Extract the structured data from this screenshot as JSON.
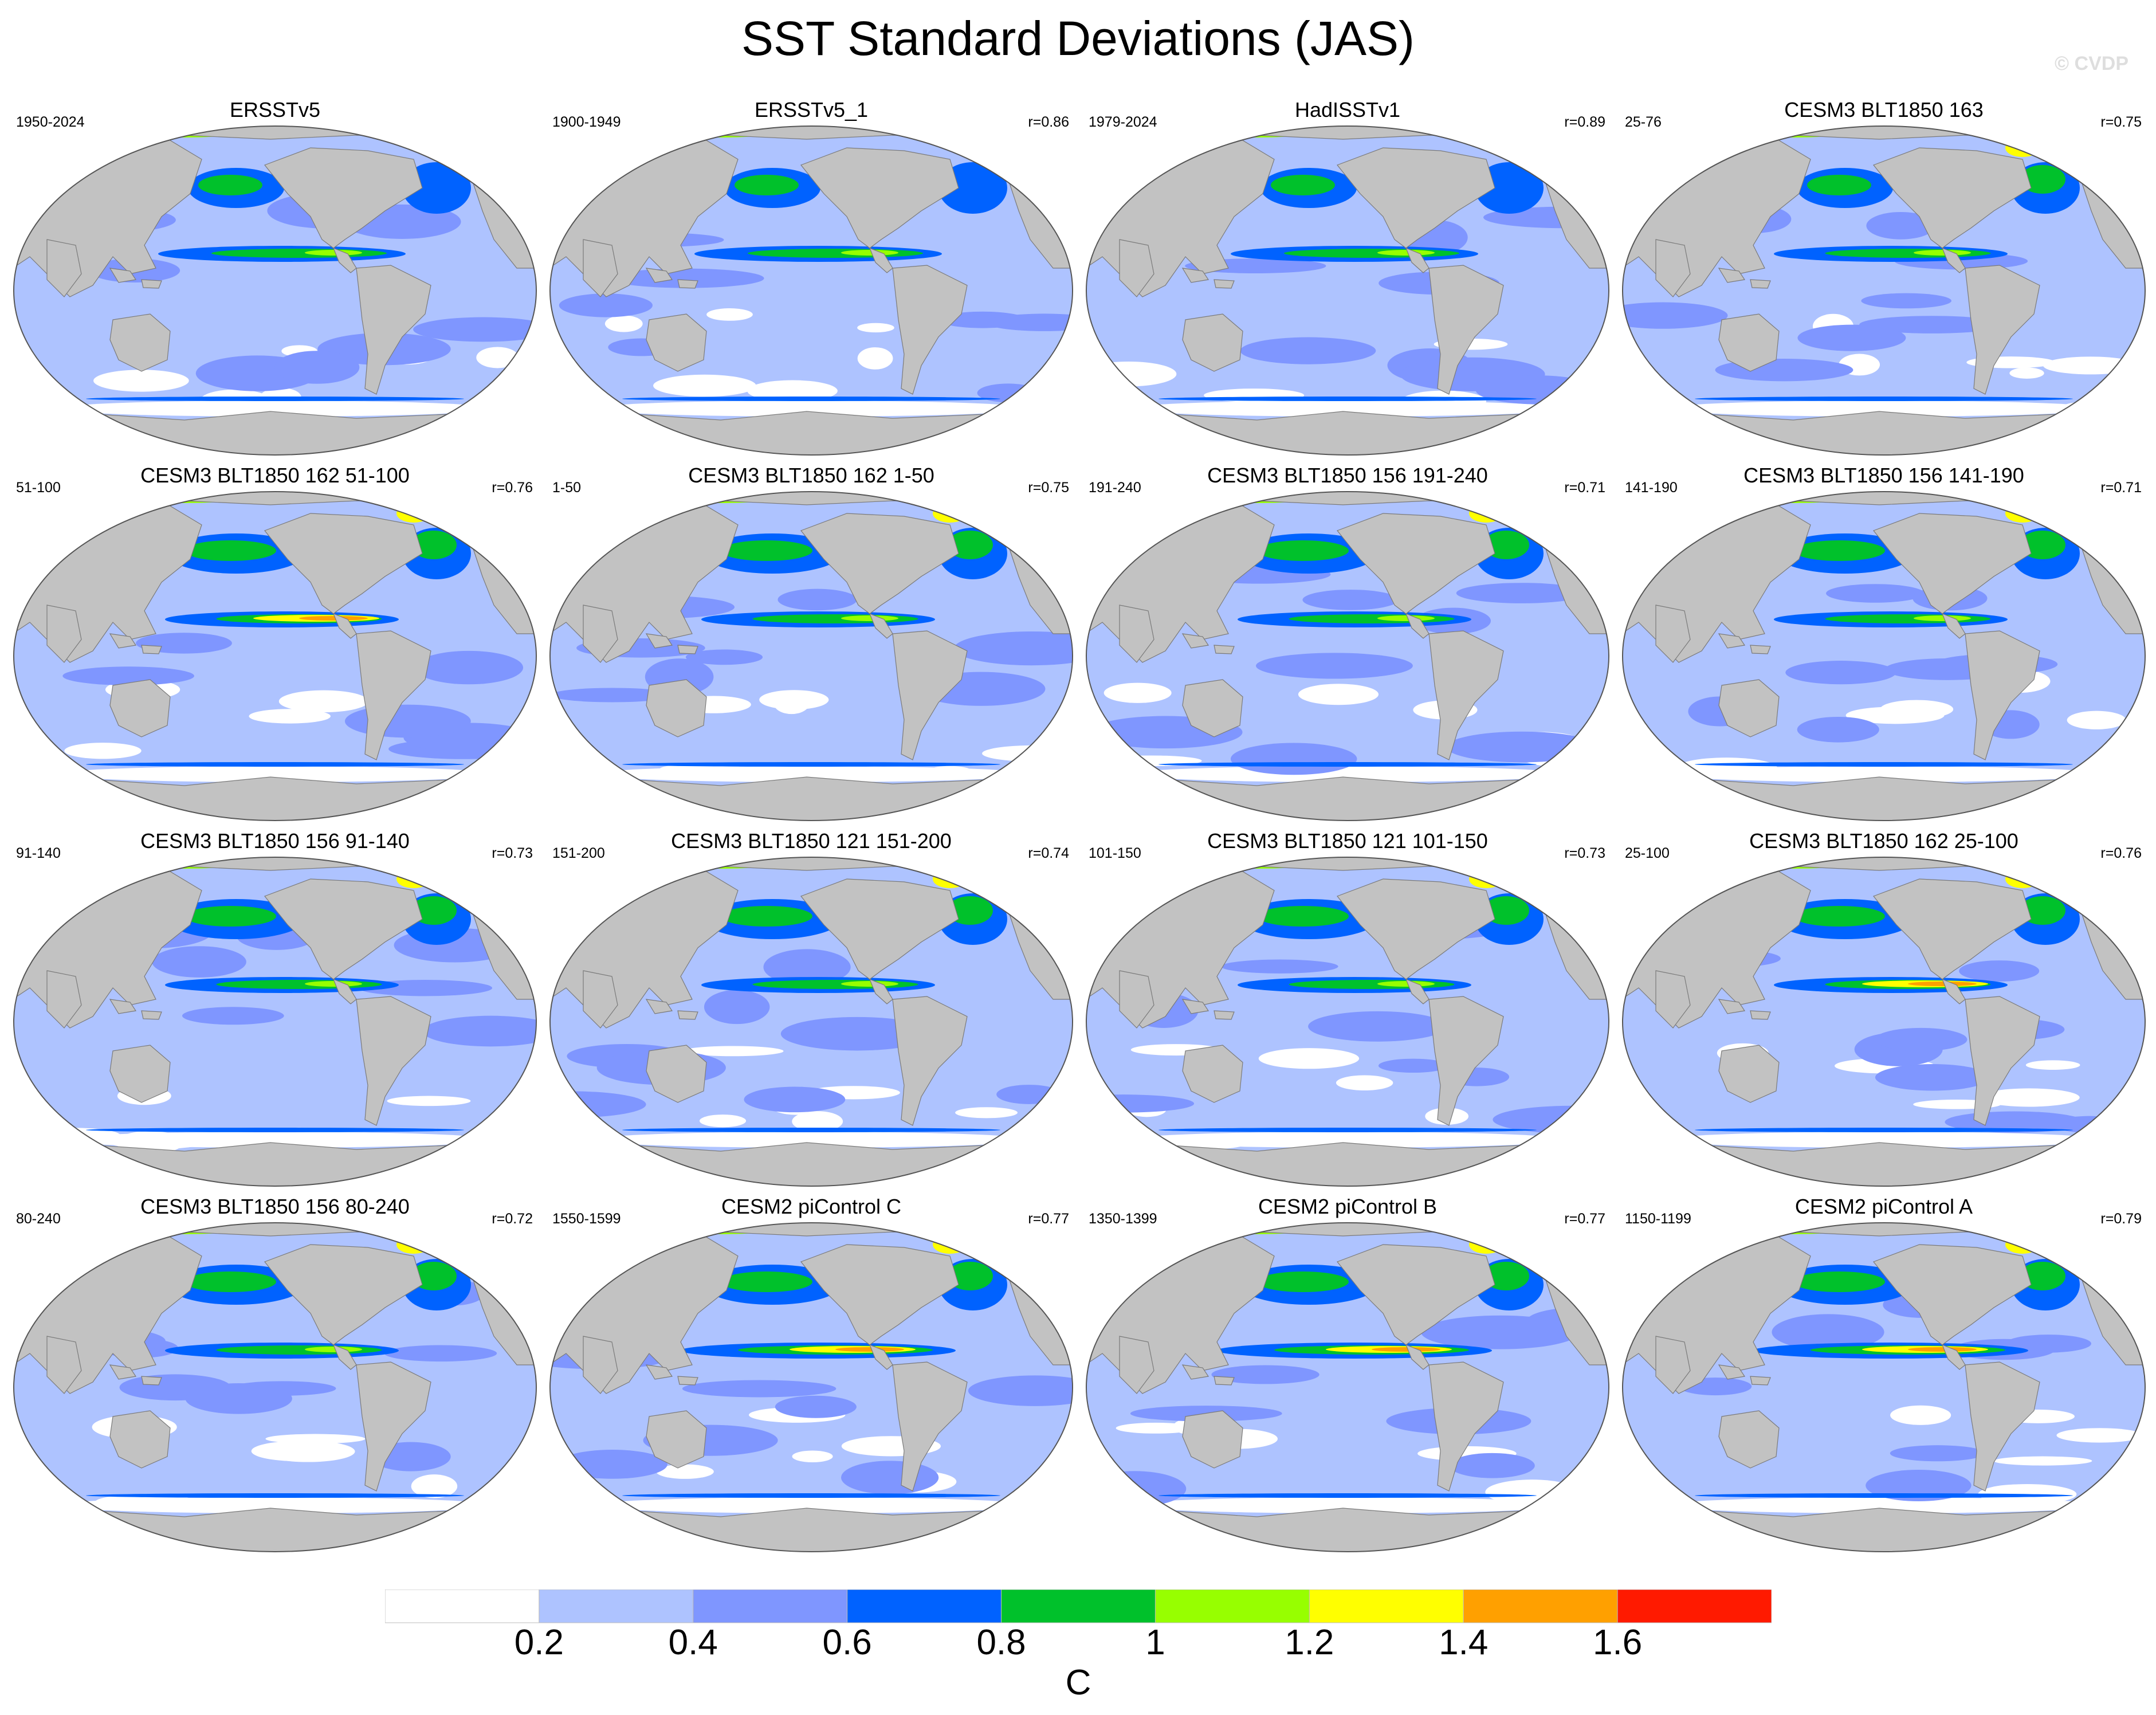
{
  "figure": {
    "title": "SST Standard Deviations (JAS)",
    "copyright": "© CVDP"
  },
  "panels": [
    {
      "title": "ERSSTv5",
      "period": "1950-2024",
      "corr": ""
    },
    {
      "title": "ERSSTv5_1",
      "period": "1900-1949",
      "corr": "r=0.86"
    },
    {
      "title": "HadISSTv1",
      "period": "1979-2024",
      "corr": "r=0.89"
    },
    {
      "title": "CESM3 BLT1850 163",
      "period": "25-76",
      "corr": "r=0.75"
    },
    {
      "title": "CESM3 BLT1850 162 51-100",
      "period": "51-100",
      "corr": "r=0.76"
    },
    {
      "title": "CESM3 BLT1850 162 1-50",
      "period": "1-50",
      "corr": "r=0.75"
    },
    {
      "title": "CESM3 BLT1850 156 191-240",
      "period": "191-240",
      "corr": "r=0.71"
    },
    {
      "title": "CESM3 BLT1850 156 141-190",
      "period": "141-190",
      "corr": "r=0.71"
    },
    {
      "title": "CESM3 BLT1850 156 91-140",
      "period": "91-140",
      "corr": "r=0.73"
    },
    {
      "title": "CESM3 BLT1850 121 151-200",
      "period": "151-200",
      "corr": "r=0.74"
    },
    {
      "title": "CESM3 BLT1850 121 101-150",
      "period": "101-150",
      "corr": "r=0.73"
    },
    {
      "title": "CESM3 BLT1850 162 25-100",
      "period": "25-100",
      "corr": "r=0.76"
    },
    {
      "title": "CESM3 BLT1850 156 80-240",
      "period": "80-240",
      "corr": "r=0.72"
    },
    {
      "title": "CESM2 piControl C",
      "period": "1550-1599",
      "corr": "r=0.77"
    },
    {
      "title": "CESM2 piControl B",
      "period": "1350-1399",
      "corr": "r=0.77"
    },
    {
      "title": "CESM2 piControl A",
      "period": "1150-1199",
      "corr": "r=0.79"
    }
  ],
  "colorbar": {
    "unit": "C",
    "labels": [
      "0.2",
      "0.4",
      "0.6",
      "0.8",
      "1",
      "1.2",
      "1.4",
      "1.6"
    ],
    "colors": [
      "#ffffff",
      "#aec3ff",
      "#7f96ff",
      "#0062ff",
      "#00c12b",
      "#97ff00",
      "#ffff00",
      "#ffa000",
      "#ff1a00"
    ]
  },
  "map_colors": {
    "land": "#c2c2c2",
    "ocean_base": "#aec3ff"
  }
}
